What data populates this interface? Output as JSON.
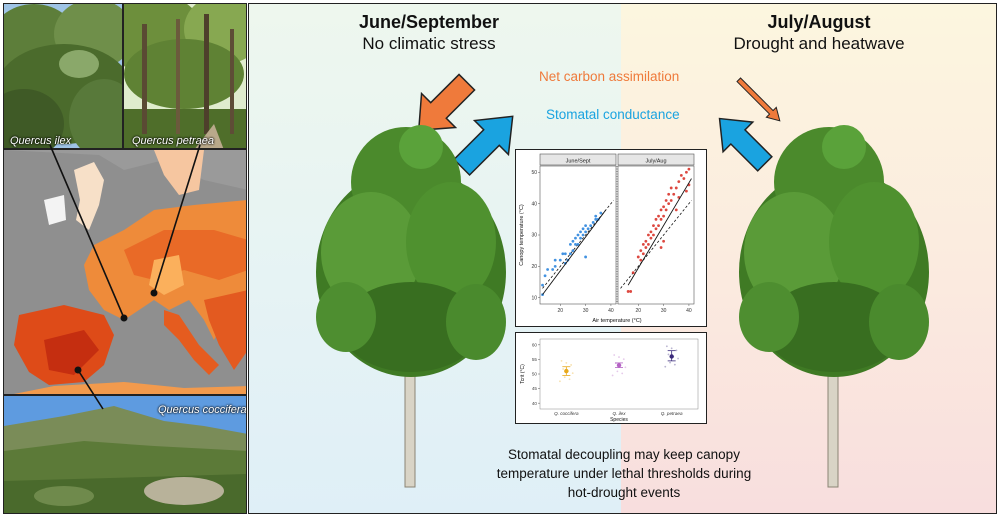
{
  "photos": {
    "quercus_ilex_label": "Quercus ilex",
    "quercus_petraea_label": "Quercus petraea",
    "quercus_coccifera_label": "Quercus coccifera"
  },
  "headers": {
    "left_title": "June/September",
    "left_subtitle": "No climatic stress",
    "right_title": "July/August",
    "right_subtitle": "Drought and heatwave"
  },
  "labels": {
    "carbon": "Net carbon assimilation",
    "stomatal": "Stomatal conductance"
  },
  "caption": {
    "line1": "Stomatal decoupling may keep canopy",
    "line2": "temperature under lethal thresholds during",
    "line3": "hot-drought events"
  },
  "colors": {
    "carbon": "#ef7a3b",
    "stomatal": "#1aa3e0",
    "june": "#2e86de",
    "july": "#d9342b"
  },
  "chart_data": [
    {
      "type": "scatter",
      "panels": [
        "June/Sept",
        "July/Aug"
      ],
      "xlabel": "Air temperature (°C)",
      "ylabel": "Canopy temperature (°C)",
      "xlim": [
        12,
        42
      ],
      "ylim": [
        8,
        52
      ],
      "xticks": [
        20,
        30,
        40
      ],
      "yticks": [
        10,
        20,
        30,
        40,
        50
      ],
      "series": [
        {
          "name": "June/Sept",
          "points": [
            [
              13,
              11
            ],
            [
              13,
              14
            ],
            [
              14,
              17
            ],
            [
              15,
              19
            ],
            [
              17,
              19
            ],
            [
              18,
              20
            ],
            [
              18,
              22
            ],
            [
              20,
              22
            ],
            [
              21,
              24
            ],
            [
              22,
              21
            ],
            [
              22,
              24
            ],
            [
              23,
              22
            ],
            [
              24,
              24
            ],
            [
              24,
              27
            ],
            [
              25,
              25
            ],
            [
              25,
              28
            ],
            [
              26,
              27
            ],
            [
              26,
              29
            ],
            [
              27,
              27
            ],
            [
              27,
              30
            ],
            [
              28,
              29
            ],
            [
              28,
              31
            ],
            [
              29,
              30
            ],
            [
              29,
              32
            ],
            [
              30,
              31
            ],
            [
              30,
              33
            ],
            [
              31,
              32
            ],
            [
              32,
              33
            ],
            [
              33,
              34
            ],
            [
              34,
              35
            ],
            [
              34,
              36
            ],
            [
              35,
              35
            ],
            [
              36,
              37
            ],
            [
              30,
              23
            ]
          ],
          "fit": {
            "x": [
              13,
              38
            ],
            "y": [
              11,
              38
            ]
          },
          "ref": {
            "x": [
              13,
              41
            ],
            "y": [
              13,
              41
            ]
          }
        },
        {
          "name": "July/Aug",
          "points": [
            [
              20,
              23
            ],
            [
              21,
              22
            ],
            [
              21,
              25
            ],
            [
              22,
              24
            ],
            [
              22,
              27
            ],
            [
              23,
              26
            ],
            [
              23,
              28
            ],
            [
              24,
              27
            ],
            [
              24,
              30
            ],
            [
              25,
              29
            ],
            [
              25,
              31
            ],
            [
              26,
              30
            ],
            [
              26,
              33
            ],
            [
              27,
              32
            ],
            [
              27,
              35
            ],
            [
              28,
              33
            ],
            [
              28,
              36
            ],
            [
              29,
              35
            ],
            [
              29,
              38
            ],
            [
              30,
              36
            ],
            [
              30,
              39
            ],
            [
              31,
              38
            ],
            [
              31,
              41
            ],
            [
              32,
              40
            ],
            [
              32,
              43
            ],
            [
              33,
              41
            ],
            [
              33,
              45
            ],
            [
              34,
              43
            ],
            [
              35,
              45
            ],
            [
              36,
              47
            ],
            [
              37,
              49
            ],
            [
              38,
              48
            ],
            [
              39,
              50
            ],
            [
              40,
              51
            ],
            [
              40,
              46
            ],
            [
              39,
              44
            ],
            [
              36,
              42
            ],
            [
              35,
              38
            ],
            [
              30,
              28
            ],
            [
              29,
              26
            ],
            [
              16,
              12
            ],
            [
              17,
              12
            ],
            [
              18,
              18
            ]
          ],
          "fit": {
            "x": [
              16,
              41
            ],
            "y": [
              14,
              48
            ]
          },
          "ref": {
            "x": [
              13,
              41
            ],
            "y": [
              13,
              41
            ]
          }
        }
      ]
    },
    {
      "type": "scatter",
      "xlabel": "Species",
      "ylabel": "Tcrit (°C)",
      "ylim": [
        38,
        62
      ],
      "yticks": [
        40,
        45,
        50,
        55,
        60
      ],
      "categories": [
        "Q. coccifera",
        "Q. ilex",
        "Q. petraea"
      ],
      "means": [
        51,
        53,
        56
      ],
      "err_low": [
        49.5,
        52.2,
        54.5
      ],
      "err_high": [
        52.5,
        53.8,
        58.0
      ],
      "point_colors": [
        "#e8a91b",
        "#b463c4",
        "#3a2a7a"
      ]
    }
  ]
}
